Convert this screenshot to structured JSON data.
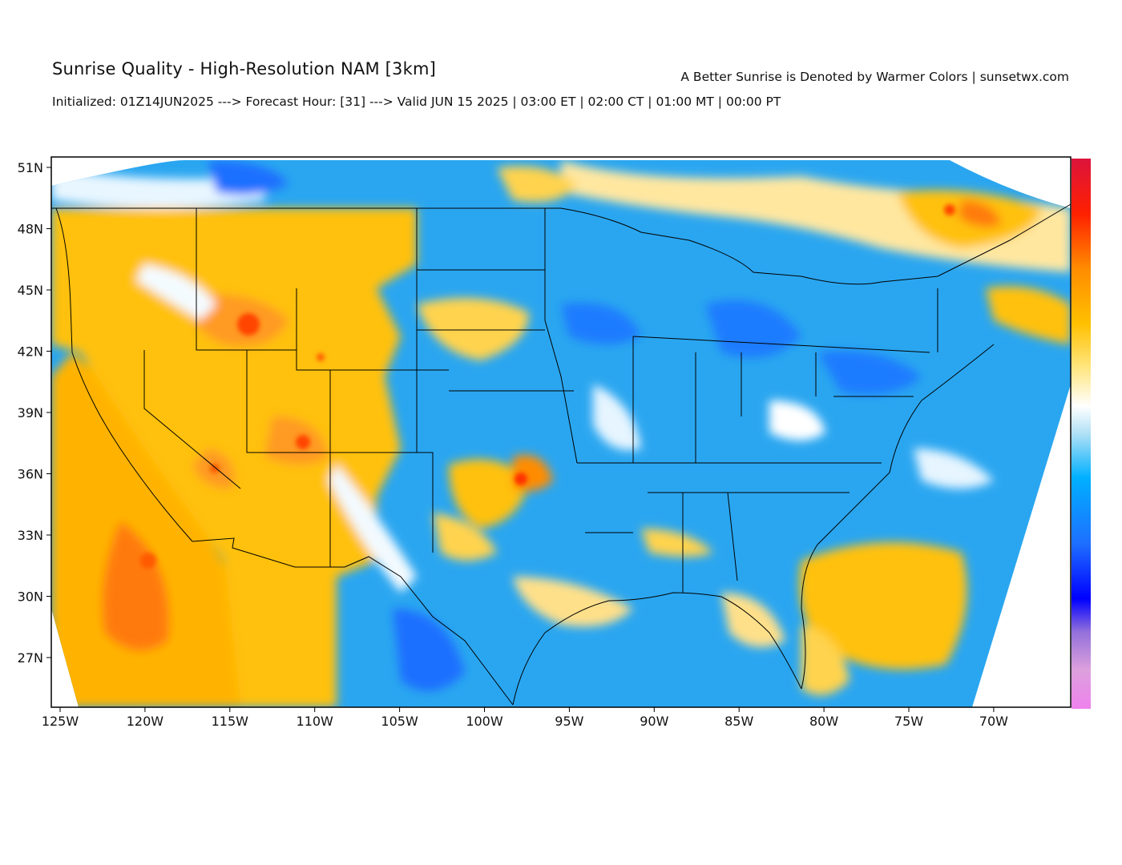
{
  "header": {
    "title": "Sunrise Quality - High-Resolution NAM [3km]",
    "tagline": "A Better Sunrise is Denoted by Warmer Colors | sunsetwx.com",
    "subtitle": "Initialized: 01Z14JUN2025 ---> Forecast Hour: [31] ---> Valid JUN 15 2025 | 03:00 ET | 02:00 CT | 01:00 MT | 00:00 PT"
  },
  "map": {
    "region": "Contiguous United States",
    "lat_labels": [
      "51N",
      "48N",
      "45N",
      "42N",
      "39N",
      "36N",
      "33N",
      "30N",
      "27N"
    ],
    "lon_labels": [
      "125W",
      "120W",
      "115W",
      "110W",
      "105W",
      "100W",
      "95W",
      "90W",
      "85W",
      "80W",
      "75W",
      "70W"
    ],
    "colorbar": {
      "stops": [
        "#ee82ee",
        "#dda0dd",
        "#8a2be2",
        "#0000ff",
        "#1e6fff",
        "#00b0ff",
        "#87ceeb",
        "#ffffff",
        "#ffe680",
        "#ffc000",
        "#ff8c00",
        "#ff2000",
        "#dc143c"
      ]
    },
    "colors": {
      "poor": "#1e90ff",
      "fair": "#ffffff",
      "good": "#ffc107",
      "great": "#ff4500"
    }
  }
}
